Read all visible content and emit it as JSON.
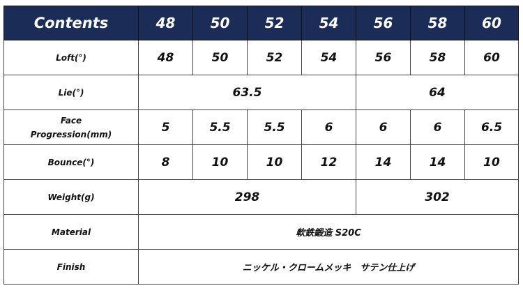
{
  "header": {
    "label": "Contents",
    "columns": [
      "48",
      "50",
      "52",
      "54",
      "56",
      "58",
      "60"
    ]
  },
  "header_color": "#1b2d57",
  "rows": {
    "loft": {
      "label": "Loft(°)",
      "values": [
        "48",
        "50",
        "52",
        "54",
        "56",
        "58",
        "60"
      ]
    },
    "lie": {
      "label": "Lie(°)",
      "values": [
        "63.5",
        "64"
      ]
    },
    "face": {
      "label_line1": "Face",
      "label_line2": "Progression(mm)",
      "values": [
        "5",
        "5.5",
        "5.5",
        "6",
        "6",
        "6",
        "6.5"
      ]
    },
    "bounce": {
      "label": "Bounce(°)",
      "values": [
        "8",
        "10",
        "10",
        "12",
        "14",
        "14",
        "10"
      ]
    },
    "weight": {
      "label": "Weight(g)",
      "values": [
        "298",
        "302"
      ]
    },
    "material": {
      "label": "Material",
      "value": "軟鉄鍛造 S20C"
    },
    "finish": {
      "label": "Finish",
      "value": "ニッケル・クロームメッキ　サテン仕上げ"
    }
  }
}
